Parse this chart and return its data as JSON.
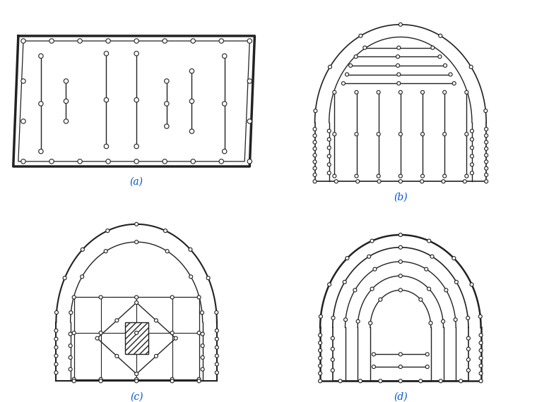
{
  "title_color": "#0055cc",
  "line_color": "#222222",
  "bg_color": "#ffffff",
  "labels": [
    "(a)",
    "(b)",
    "(c)",
    "(d)"
  ]
}
